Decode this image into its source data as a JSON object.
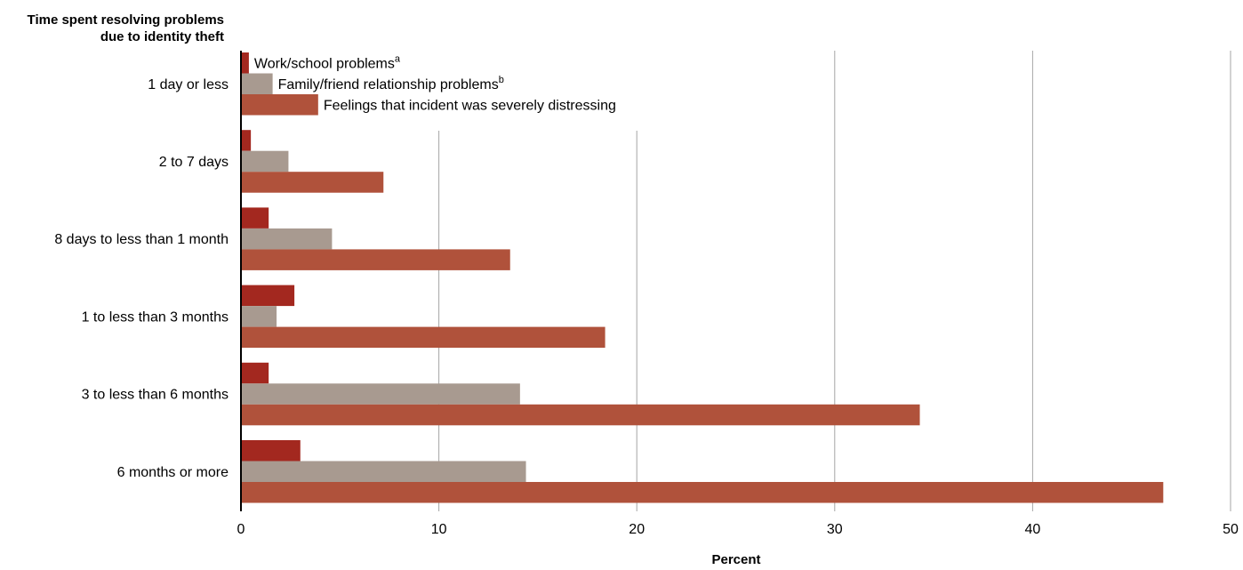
{
  "chart_data": {
    "type": "bar",
    "orientation": "horizontal",
    "ytitle_lines": [
      "Time spent resolving problems",
      "due to identity theft"
    ],
    "xlabel": "Percent",
    "xlim": [
      0,
      50
    ],
    "xticks": [
      0,
      10,
      20,
      30,
      40,
      50
    ],
    "grid": true,
    "legend_placement": "inside-top-left",
    "categories": [
      "1 day or less",
      "2 to 7 days",
      "8 days to less than 1 month",
      "1 to less than 3 months",
      "3 to less than 6 months",
      "6 months or more"
    ],
    "series": [
      {
        "name": "Work/school problems",
        "sup": "a",
        "color": "#a3281f",
        "values": [
          0.4,
          0.5,
          1.4,
          2.7,
          1.4,
          3.0
        ]
      },
      {
        "name": "Family/friend relationship problems",
        "sup": "b",
        "color": "#a89a90",
        "values": [
          1.6,
          2.4,
          4.6,
          1.8,
          14.1,
          14.4
        ]
      },
      {
        "name": "Feelings that incident was severely distressing",
        "sup": "",
        "color": "#b0523b",
        "values": [
          3.9,
          7.2,
          13.6,
          18.4,
          34.3,
          46.6
        ]
      }
    ]
  }
}
